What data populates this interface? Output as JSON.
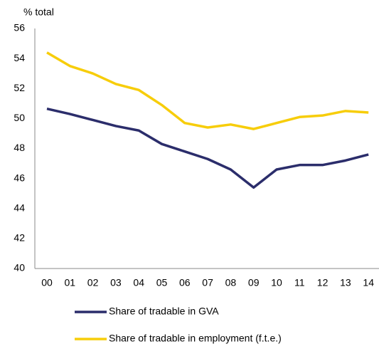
{
  "chart_data": {
    "type": "line",
    "y_label": "% total",
    "categories": [
      "00",
      "01",
      "02",
      "03",
      "04",
      "05",
      "06",
      "07",
      "08",
      "09",
      "10",
      "11",
      "12",
      "13",
      "14"
    ],
    "series": [
      {
        "name": "Share of tradable in GVA",
        "color": "#2b2d6b",
        "values": [
          50.65,
          50.3,
          49.9,
          49.5,
          49.2,
          48.3,
          47.8,
          47.3,
          46.6,
          45.4,
          46.6,
          46.9,
          46.9,
          47.2,
          47.6
        ]
      },
      {
        "name": "Share of tradable in employment (f.t.e.)",
        "color": "#f7cd0a",
        "values": [
          54.4,
          53.5,
          53.0,
          52.3,
          51.9,
          50.9,
          49.7,
          49.4,
          49.6,
          49.3,
          49.7,
          50.1,
          50.2,
          50.5,
          50.4
        ]
      }
    ],
    "ylim": [
      40,
      56
    ],
    "yticks": [
      40,
      42,
      44,
      46,
      48,
      50,
      52,
      54,
      56
    ],
    "grid": false
  }
}
